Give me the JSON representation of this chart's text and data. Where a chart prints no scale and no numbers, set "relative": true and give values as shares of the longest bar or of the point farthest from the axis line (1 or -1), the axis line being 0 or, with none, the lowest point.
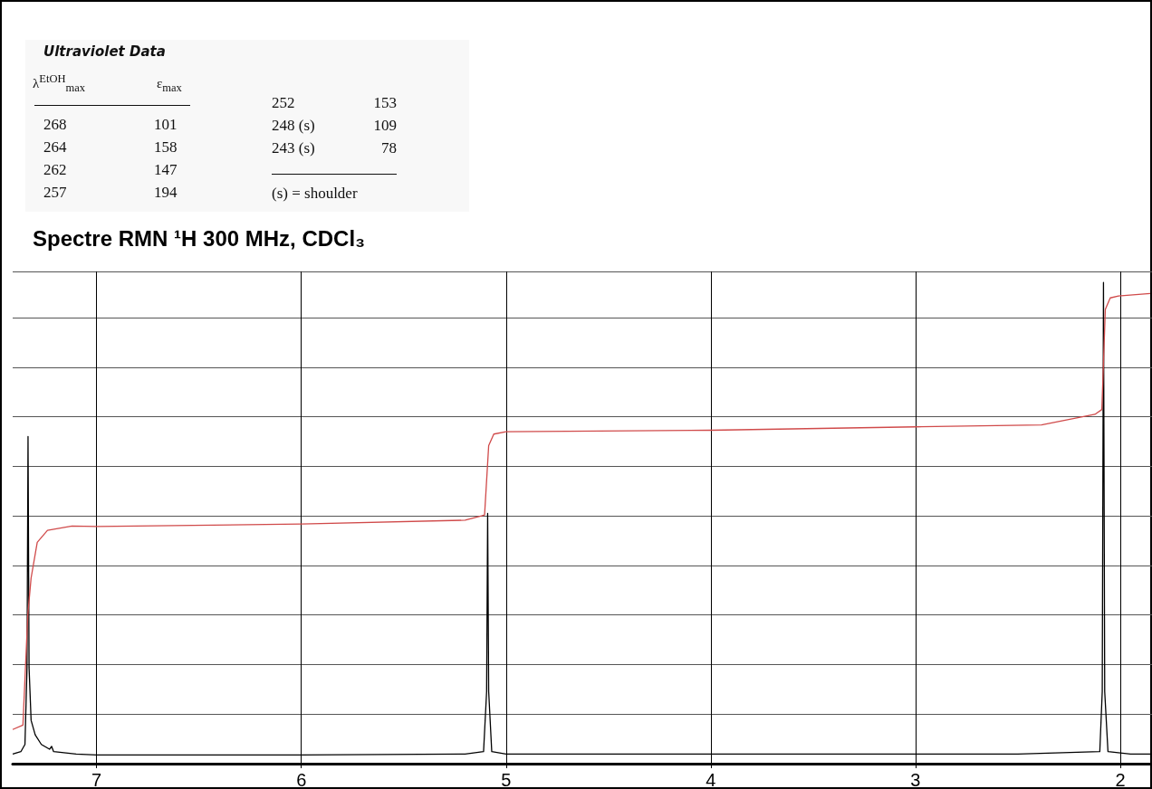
{
  "chart_data": {
    "type": "line",
    "title": "Spectre RMN ¹H 300 MHz, CDCl₃",
    "relative": true,
    "xlim": [
      7.41,
      1.845
    ],
    "xticks": [
      7,
      6,
      5,
      4,
      3,
      2
    ],
    "tick_labels": "x",
    "grid": true,
    "marker": "none",
    "line_style": "solid",
    "annotations": [
      "Ultraviolet Data",
      "λ$^{EtOH}$$_{max}$",
      "ε$_{max}$",
      "268",
      "101",
      "264",
      "158",
      "262",
      "147",
      "257",
      "194",
      "252",
      "153",
      "248 (s)",
      "109",
      "243 (s)",
      "78",
      "(s) = shoulder"
    ],
    "series": [
      {
        "color": "#000000",
        "x": [
          7.41,
          7.37,
          7.35,
          7.34,
          7.335,
          7.33,
          7.32,
          7.3,
          7.27,
          7.23,
          7.22,
          7.21,
          7.1,
          7.0,
          6.0,
          5.2,
          5.11,
          5.095,
          5.09,
          5.085,
          5.07,
          5.0,
          4.0,
          3.0,
          2.5,
          2.1,
          2.088,
          2.082,
          2.076,
          2.06,
          1.95,
          1.85
        ],
        "values": [
          0.02,
          0.025,
          0.04,
          0.2,
          0.68,
          0.2,
          0.09,
          0.06,
          0.04,
          0.03,
          0.036,
          0.025,
          0.02,
          0.018,
          0.018,
          0.02,
          0.025,
          0.15,
          0.52,
          0.15,
          0.025,
          0.02,
          0.02,
          0.02,
          0.02,
          0.025,
          0.15,
          1.0,
          0.15,
          0.025,
          0.02,
          0.02
        ]
      },
      {
        "color": "#d04a4a",
        "x": [
          7.41,
          7.36,
          7.336,
          7.32,
          7.29,
          7.24,
          7.12,
          7.0,
          6.0,
          5.2,
          5.12,
          5.105,
          5.085,
          5.06,
          5.0,
          4.0,
          3.0,
          2.385,
          2.124,
          2.09,
          2.082,
          2.073,
          2.049,
          2.009,
          1.854
        ],
        "values": [
          0.071,
          0.08,
          0.31,
          0.386,
          0.46,
          0.485,
          0.494,
          0.493,
          0.498,
          0.506,
          0.515,
          0.517,
          0.661,
          0.685,
          0.69,
          0.693,
          0.7,
          0.704,
          0.726,
          0.736,
          0.833,
          0.944,
          0.968,
          0.972,
          0.977
        ]
      }
    ]
  }
}
